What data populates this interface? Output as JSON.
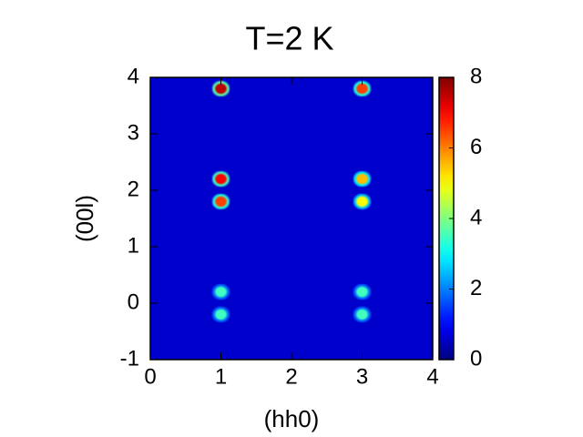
{
  "chart_data": {
    "type": "heatmap",
    "title": "T=2 K",
    "x_label": "(hh0)",
    "y_label": "(00l)",
    "x": [
      1,
      3,
      1,
      3,
      1,
      3,
      1,
      3,
      1,
      3
    ],
    "y": [
      3.8,
      3.8,
      2.2,
      2.2,
      1.8,
      1.8,
      0.2,
      0.2,
      -0.2,
      -0.2
    ],
    "values": [
      7.5,
      6.5,
      7,
      5.5,
      6.5,
      5,
      3.5,
      3.5,
      3.5,
      3.5
    ],
    "background": 0.6,
    "colormap": "jet",
    "xlim": [
      0,
      4
    ],
    "xticks": [
      0,
      1,
      2,
      3,
      4
    ],
    "ylim": [
      -1,
      4
    ],
    "yticks": [
      -1,
      0,
      1,
      2,
      3,
      4
    ],
    "zlim": [
      0,
      8
    ],
    "zticks": [
      0,
      2,
      4,
      6,
      8
    ]
  }
}
